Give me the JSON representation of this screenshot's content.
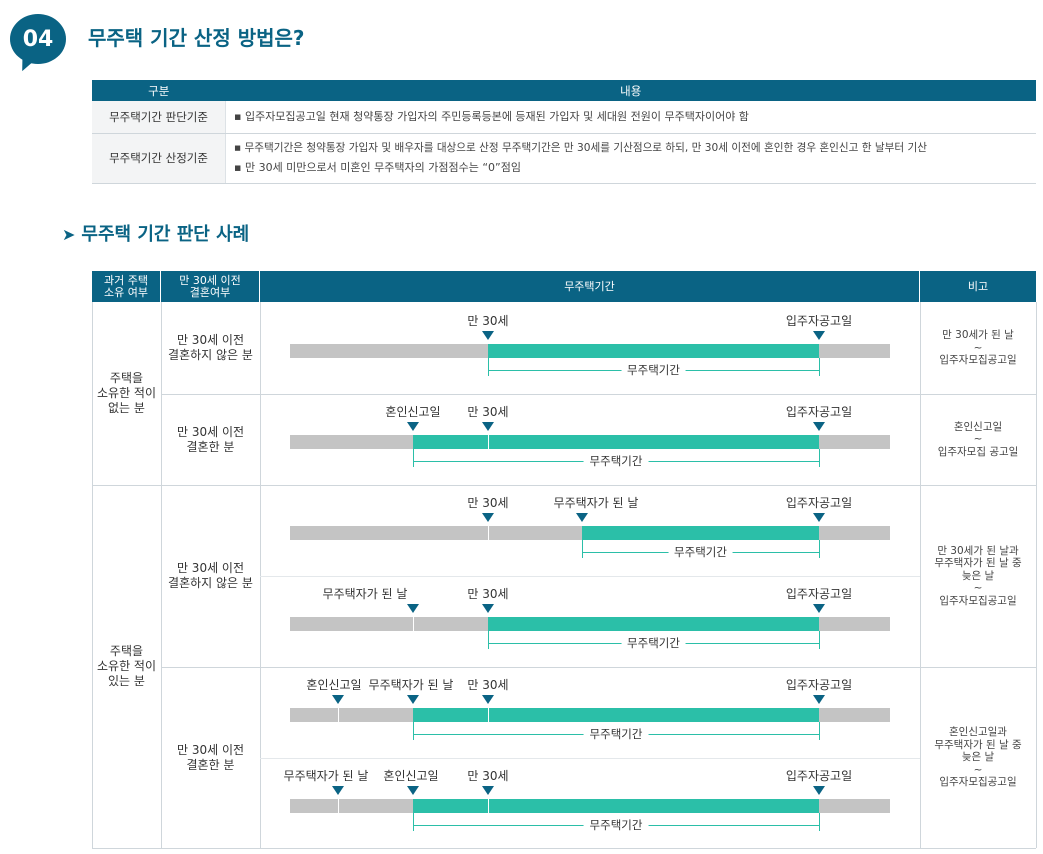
{
  "header": {
    "number": "04",
    "title": "무주택 기간 산정 방법은?"
  },
  "table1": {
    "col_headers": [
      "구분",
      "내용"
    ],
    "rows": [
      {
        "label": "무주택기간 판단기준",
        "lines": [
          "▪ 입주자모집공고일 현재 청약통장 가입자의 주민등록등본에 등재된 가입자 및 세대원 전원이 무주택자이어야 함"
        ]
      },
      {
        "label": "무주택기간 산정기준",
        "lines": [
          "▪ 무주택기간은 청약통장 가입자 및 배우자를 대상으로 산정 무주택기간은 만 30세를 기산점으로 하되, 만 30세 이전에 혼인한 경우 혼인신고 한 날부터 기산",
          "▪ 만 30세 미만으로서 미혼인 무주택자의 가점점수는 “0”점임"
        ]
      }
    ]
  },
  "section": {
    "title": "무주택 기간 판단 사례"
  },
  "table2": {
    "headers": {
      "own": "과거 주택\n소유 여부",
      "married": "만 30세 이전\n결혼여부",
      "period": "무주택기간",
      "note": "비고"
    },
    "own_groups": [
      "주택을\n소유한 적이\n없는 분",
      "주택을\n소유한 적이\n있는 분"
    ],
    "marriage": {
      "a": "만 30세 이전\n결혼하지 않은 분",
      "b": "만 30세 이전\n결혼한 분",
      "c": "만 30세 이전\n결혼하지 않은 분",
      "d": "만 30세 이전\n결혼한 분"
    },
    "notes": {
      "a": "만 30세가 된 날\n~\n입주자모집공고일",
      "b": "혼인신고일\n~\n입주자모집 공고일",
      "c": "만 30세가 된 날과\n무주택자가 된 날 중\n늦은 날\n~\n입주자모집공고일",
      "d": "혼인신고일과\n무주택자가 된 날 중\n늦은 날\n~\n입주자모집공고일"
    },
    "timeline": {
      "period_label": "무주택기간",
      "markers": {
        "age30": "만 30세",
        "announce": "입주자공고일",
        "marriage": "혼인신고일",
        "homeless": "무주택자가 된 날"
      }
    }
  },
  "colors": {
    "navy": "#0a6384",
    "teal": "#2bbfa8",
    "grey": "#c4c4c4"
  }
}
